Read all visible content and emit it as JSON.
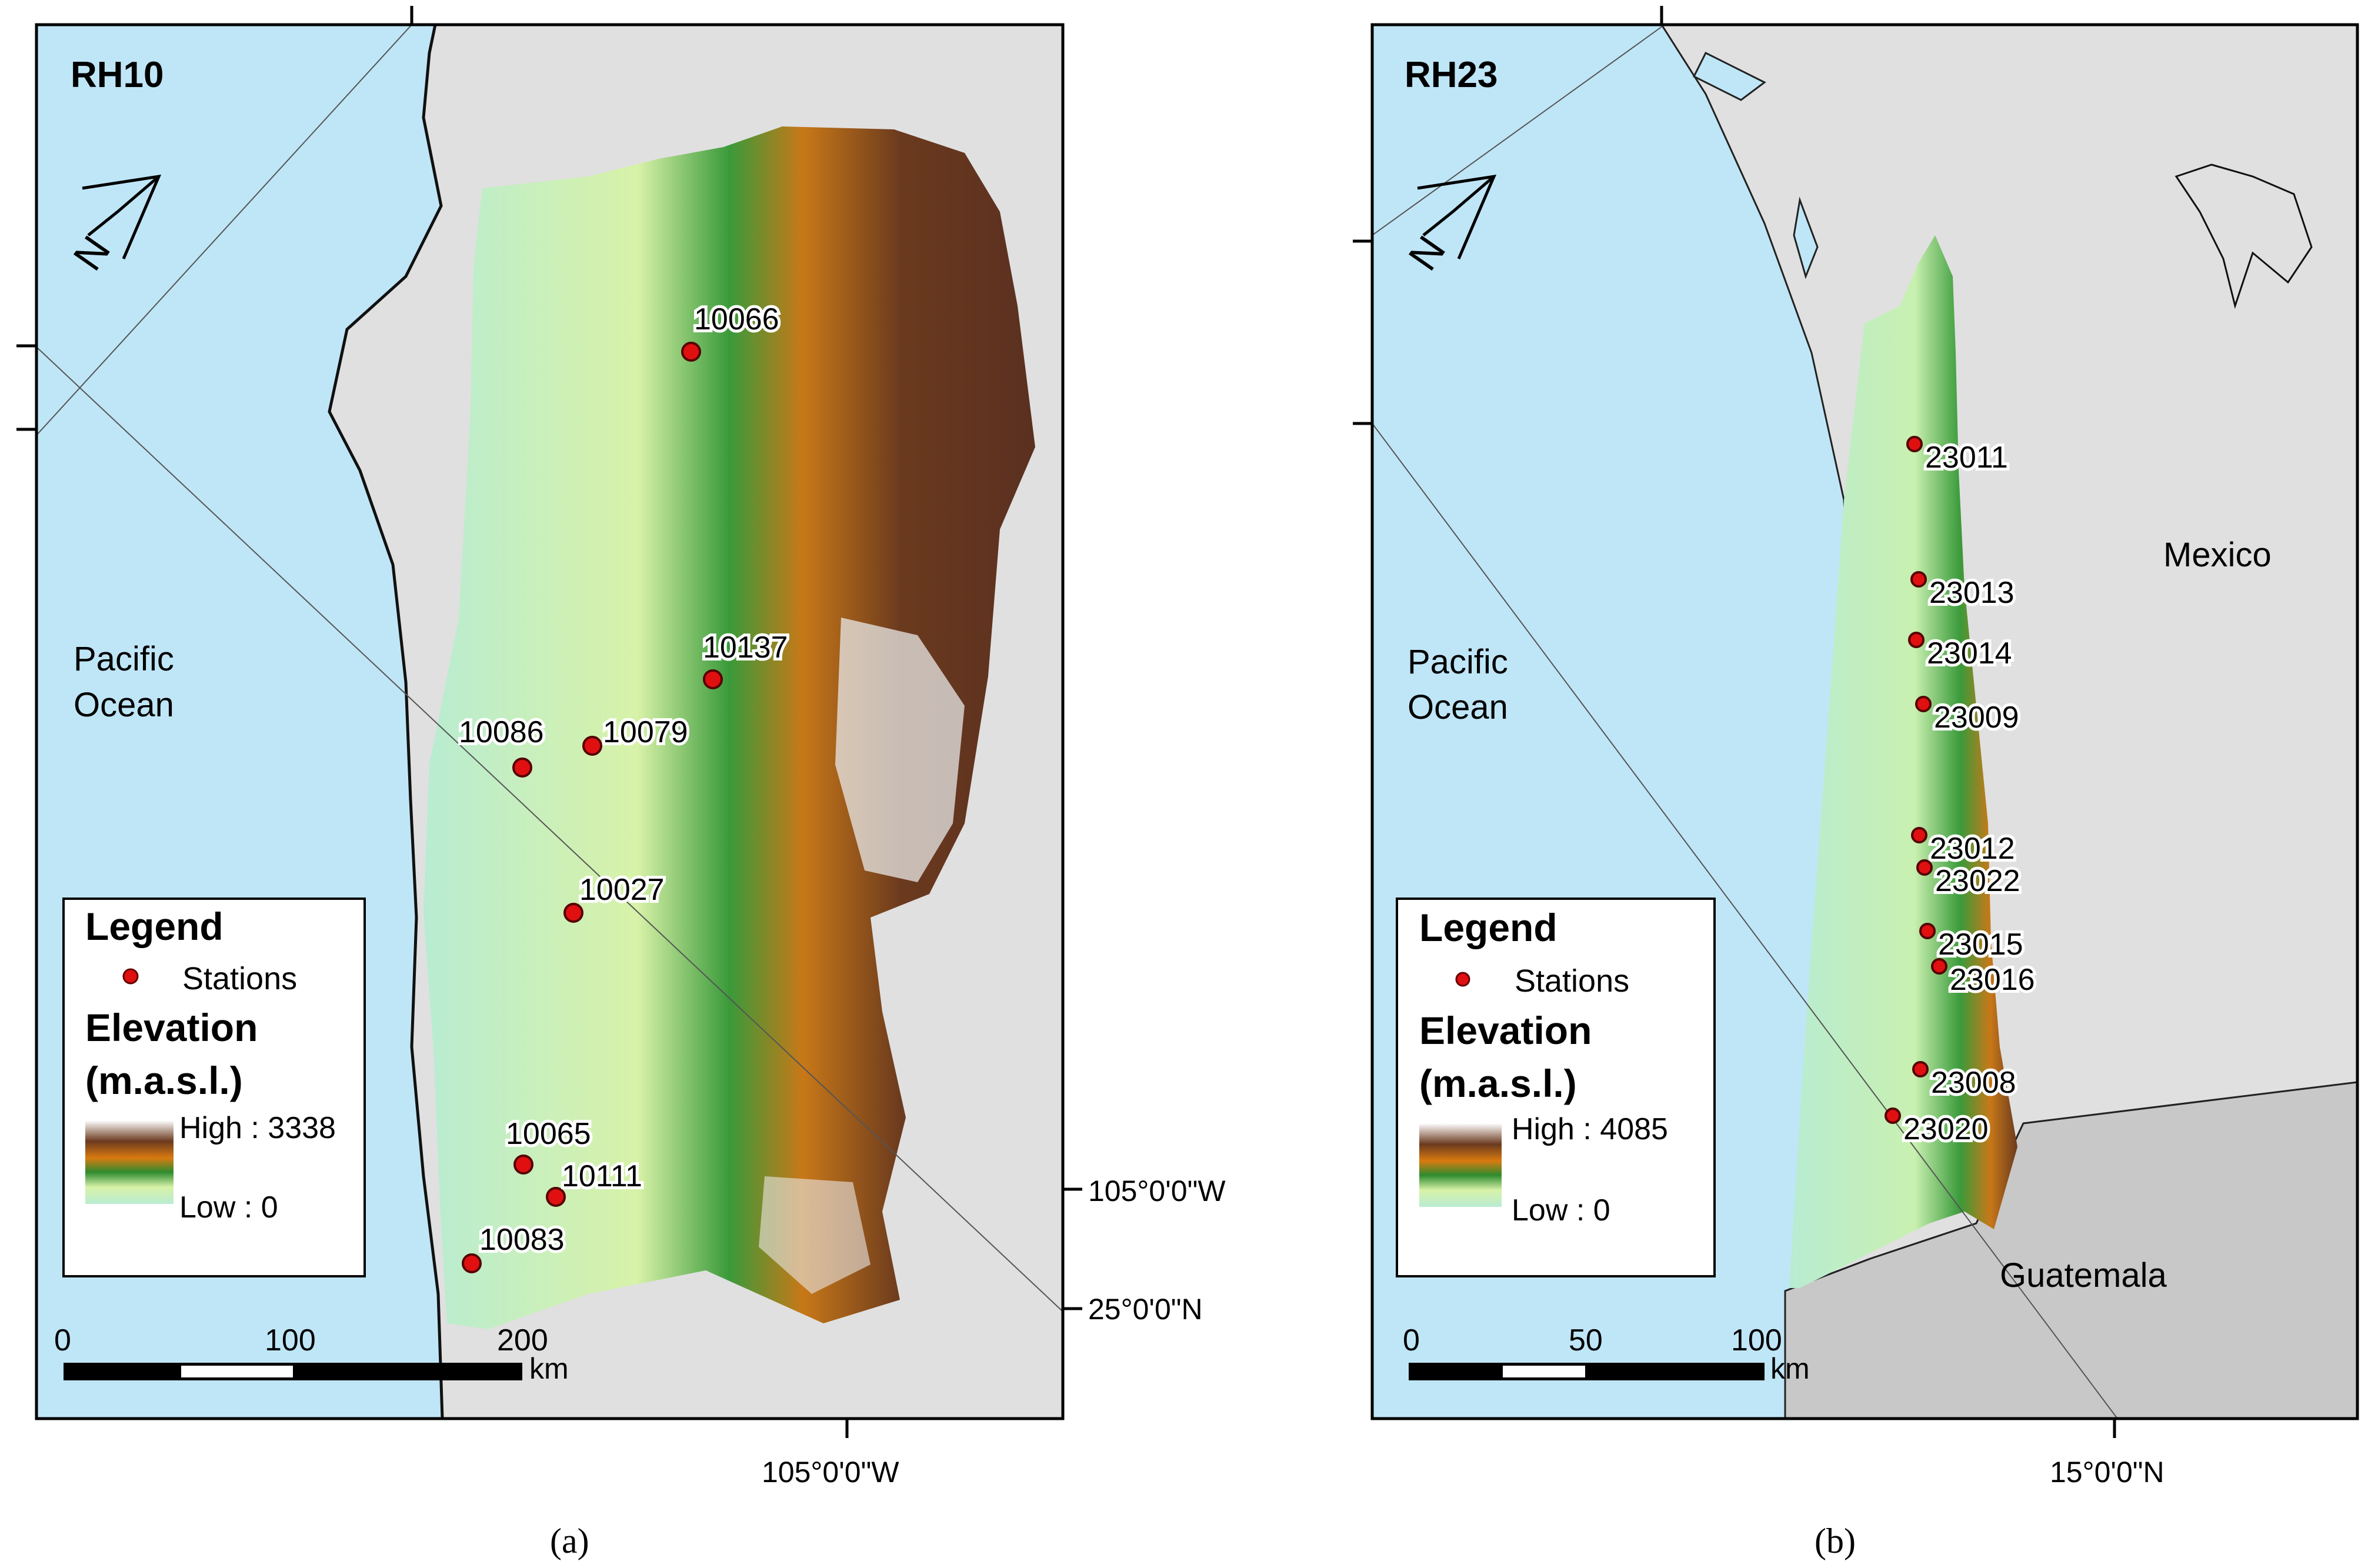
{
  "figure": {
    "panels": [
      {
        "id": "a",
        "title": "RH10",
        "caption": "(a)",
        "ocean_label_line1": "Pacific",
        "ocean_label_line2": "Ocean",
        "country_labels": [],
        "stations": [
          "10066",
          "10137",
          "10086",
          "10079",
          "10027",
          "10065",
          "10111",
          "10083"
        ],
        "legend": {
          "title": "Legend",
          "stations_label": "Stations",
          "elevation_title_line1": "Elevation",
          "elevation_title_line2": "(m.a.s.l.)",
          "high_label": "High : 3338",
          "low_label": "Low : 0"
        },
        "scale_bar": {
          "ticks": [
            "0",
            "100",
            "200"
          ],
          "unit": "km"
        },
        "graticule_labels": {
          "lon_right": "105°0'0\"W",
          "lat_right": "25°0'0\"N",
          "lon_bottom": "105°0'0\"W"
        }
      },
      {
        "id": "b",
        "title": "RH23",
        "caption": "(b)",
        "ocean_label_line1": "Pacific",
        "ocean_label_line2": "Ocean",
        "country_labels": [
          "Mexico",
          "Guatemala"
        ],
        "stations": [
          "23011",
          "23013",
          "23014",
          "23009",
          "23012",
          "23022",
          "23015",
          "23016",
          "23008",
          "23020"
        ],
        "legend": {
          "title": "Legend",
          "stations_label": "Stations",
          "elevation_title_line1": "Elevation",
          "elevation_title_line2": "(m.a.s.l.)",
          "high_label": "High : 4085",
          "low_label": "Low : 0"
        },
        "scale_bar": {
          "ticks": [
            "0",
            "50",
            "100"
          ],
          "unit": "km"
        },
        "graticule_labels": {
          "lat_bottom": "15°0'0\"N"
        }
      }
    ],
    "colors": {
      "ocean": "#bfe6f7",
      "land_outside": "#e0e0e0",
      "guatemala": "#c8c8c8",
      "elev_low": "#c8f0c8",
      "elev_mid": "#2e8b2e",
      "elev_orange": "#d97a10",
      "elev_high": "#6b3a1e",
      "elev_peak": "#e8e8e8",
      "station": "#e01010"
    }
  }
}
